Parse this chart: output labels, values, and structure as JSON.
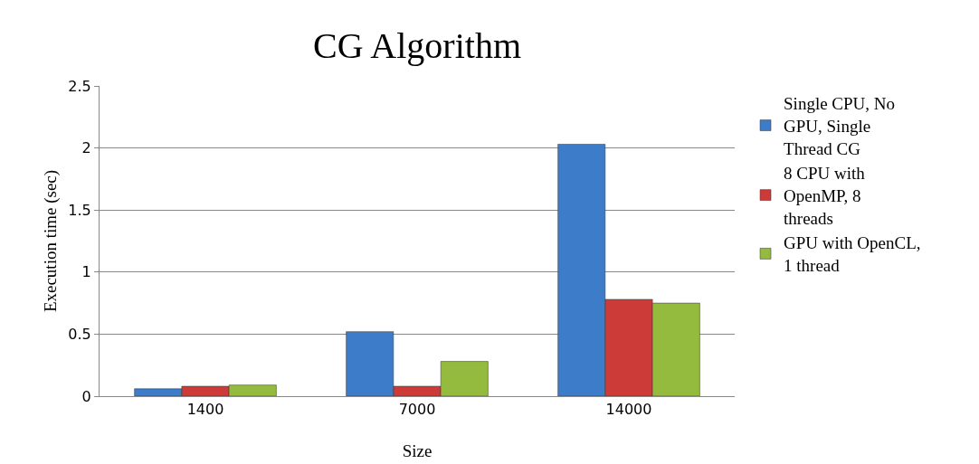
{
  "chart_data": {
    "type": "bar",
    "title": "CG Algorithm",
    "xlabel": "Size",
    "ylabel": "Execution time (sec)",
    "categories": [
      "1400",
      "7000",
      "14000"
    ],
    "series": [
      {
        "name": "Single CPU, No GPU, Single Thread CG",
        "color": "#3d7cc9",
        "values": [
          0.06,
          0.52,
          2.03
        ]
      },
      {
        "name": "8 CPU with OpenMP, 8 threads",
        "color": "#cc3b38",
        "values": [
          0.08,
          0.08,
          0.78
        ]
      },
      {
        "name": "GPU with OpenCL, 1 thread",
        "color": "#94bb3e",
        "values": [
          0.09,
          0.28,
          0.75
        ]
      }
    ],
    "ylim": [
      0,
      2.5
    ],
    "yticks": [
      0,
      0.5,
      1,
      1.5,
      2,
      2.5
    ],
    "grid": "y",
    "legend": "right"
  }
}
